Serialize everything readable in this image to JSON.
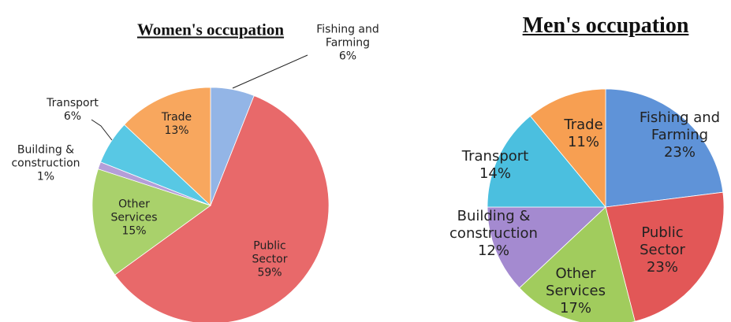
{
  "chart_data": [
    {
      "type": "pie",
      "title": "Women's occupation",
      "categories": [
        "Fishing and Farming",
        "Public Sector",
        "Other Services",
        "Building & construction",
        "Transport",
        "Trade"
      ],
      "values": [
        6,
        59,
        15,
        1,
        6,
        13
      ],
      "value_labels": [
        "6%",
        "59%",
        "15%",
        "1%",
        "6%",
        "13%"
      ],
      "colors": [
        "#93b5e6",
        "#e8696a",
        "#a9d16b",
        "#b49ed8",
        "#58c8e4",
        "#f8a75e"
      ]
    },
    {
      "type": "pie",
      "title": "Men's occupation",
      "categories": [
        "Fishing and Farming",
        "Public Sector",
        "Other Services",
        "Building & construction",
        "Transport",
        "Trade"
      ],
      "values": [
        23,
        23,
        17,
        12,
        14,
        11
      ],
      "value_labels": [
        "23%",
        "23%",
        "17%",
        "12%",
        "14%",
        "11%"
      ],
      "colors": [
        "#5f93d8",
        "#e25757",
        "#a1cc5d",
        "#a48ad0",
        "#4bbfdf",
        "#f79f52"
      ]
    }
  ]
}
